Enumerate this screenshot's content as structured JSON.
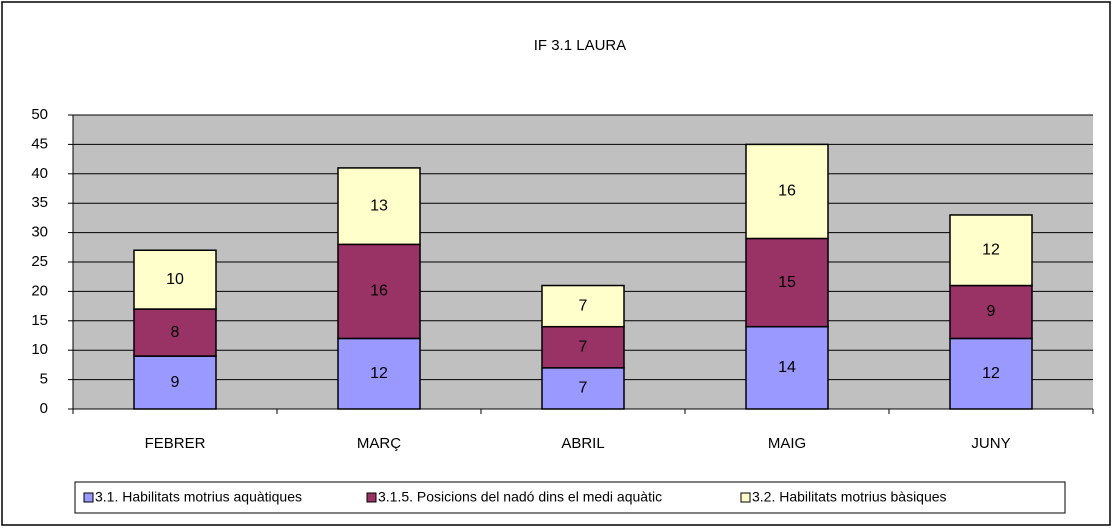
{
  "chart_data": {
    "type": "stacked_bar",
    "title": "IF 3.1 LAURA",
    "categories": [
      "FEBRER",
      "MARÇ",
      "ABRIL",
      "MAIG",
      "JUNY"
    ],
    "series": [
      {
        "name": "3.1. Habilitats motrius aquàtiques",
        "color": "#9999ff",
        "values": [
          9,
          12,
          7,
          14,
          12
        ]
      },
      {
        "name": "3.1.5. Posicions del nadó dins el medi aquàtic",
        "color": "#993366",
        "values": [
          8,
          16,
          7,
          15,
          9
        ]
      },
      {
        "name": "3.2. Habilitats motrius bàsiques",
        "color": "#ffffcc",
        "values": [
          10,
          13,
          7,
          16,
          12
        ]
      }
    ],
    "ylim": [
      0,
      50
    ],
    "yticks": [
      0,
      5,
      10,
      15,
      20,
      25,
      30,
      35,
      40,
      45,
      50
    ],
    "grid": true,
    "legend": "bottom"
  }
}
